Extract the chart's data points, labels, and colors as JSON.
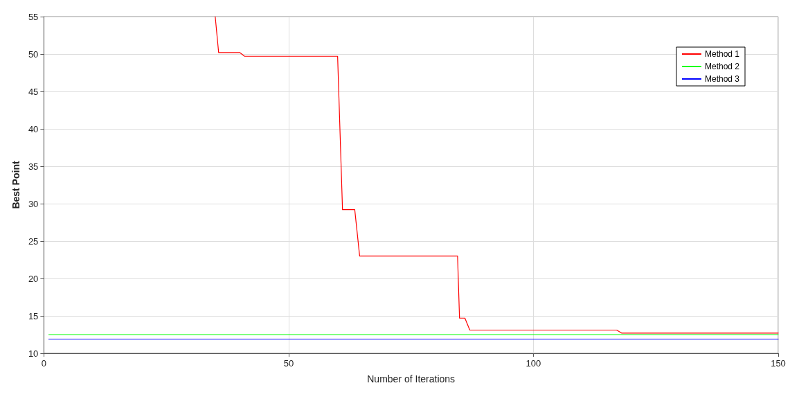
{
  "chart_data": {
    "type": "line",
    "xlabel": "Number of Iterations",
    "ylabel": "Best Point",
    "xlim": [
      0,
      150
    ],
    "xticks": [
      0,
      50,
      100,
      150
    ],
    "ylim": [
      10,
      55
    ],
    "yticks": [
      10,
      15,
      20,
      25,
      30,
      35,
      40,
      45,
      50,
      55
    ],
    "grid": true,
    "legend": "top right",
    "line_style": "solid",
    "marker": "none",
    "series": [
      {
        "name": "Method 1",
        "color": "#ff0000",
        "x": [
          35,
          35.7,
          40,
          41,
          60,
          61,
          63.5,
          64.5,
          84.5,
          84.9,
          86,
          87,
          117,
          118,
          150
        ],
        "values": [
          55,
          50.2,
          50.2,
          49.7,
          49.7,
          29.2,
          29.2,
          23.0,
          23.0,
          14.7,
          14.7,
          13.1,
          13.1,
          12.7,
          12.7
        ]
      },
      {
        "name": "Method 2",
        "color": "#00ff00",
        "x": [
          1,
          150
        ],
        "values": [
          12.5,
          12.5
        ]
      },
      {
        "name": "Method 3",
        "color": "#0000ff",
        "x": [
          1,
          150
        ],
        "values": [
          11.9,
          11.9
        ]
      }
    ]
  }
}
